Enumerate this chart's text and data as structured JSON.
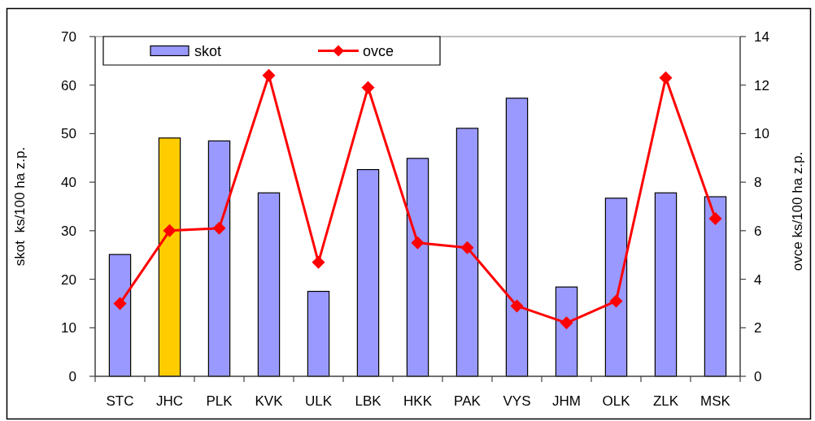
{
  "chart_data": {
    "type": "bar",
    "categories": [
      "STC",
      "JHC",
      "PLK",
      "KVK",
      "ULK",
      "LBK",
      "HKK",
      "PAK",
      "VYS",
      "JHM",
      "OLK",
      "ZLK",
      "MSK"
    ],
    "series": [
      {
        "name": "skot",
        "color": "#9999ff",
        "colors": [
          "#9999ff",
          "#ffcc00",
          "#9999ff",
          "#9999ff",
          "#9999ff",
          "#9999ff",
          "#9999ff",
          "#9999ff",
          "#9999ff",
          "#9999ff",
          "#9999ff",
          "#9999ff",
          "#9999ff"
        ],
        "values": [
          25.1,
          49.1,
          48.5,
          37.8,
          17.5,
          42.6,
          44.9,
          51.1,
          57.3,
          18.4,
          36.7,
          37.8,
          37.0
        ]
      },
      {
        "name": "ovce",
        "type": "line",
        "axis": "y2",
        "color": "#ff0000",
        "marker": "diamond",
        "values": [
          3.0,
          6.0,
          6.1,
          12.4,
          4.7,
          11.9,
          5.5,
          5.3,
          2.9,
          2.2,
          3.1,
          12.3,
          6.5
        ]
      }
    ],
    "ylabel": "skot  ks/100 ha z.p.",
    "y2label": "ovce ks/100 ha z.p.",
    "ylim": [
      0,
      70
    ],
    "yticks": [
      0,
      10,
      20,
      30,
      40,
      50,
      60,
      70
    ],
    "y2lim": [
      0,
      14
    ],
    "y2ticks": [
      0,
      2,
      4,
      6,
      8,
      10,
      12,
      14
    ],
    "legend": "top left"
  }
}
